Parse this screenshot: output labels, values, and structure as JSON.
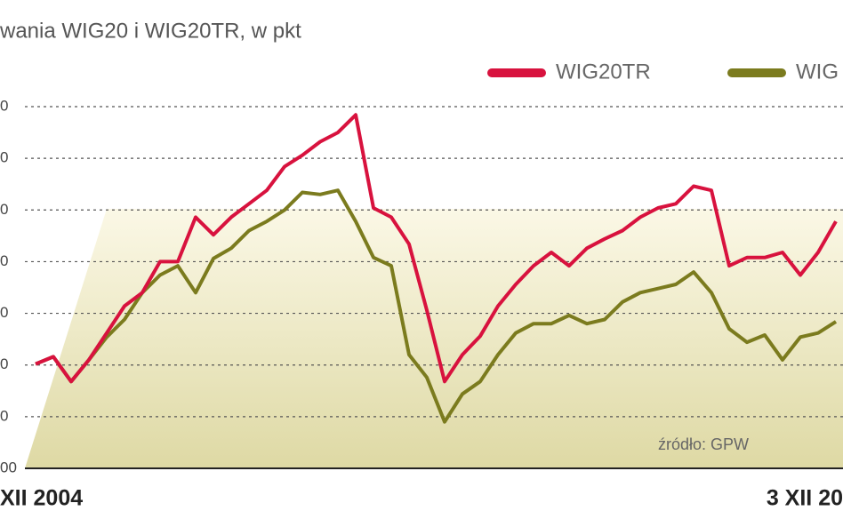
{
  "chart_data": {
    "type": "line",
    "title": "wania WIG20 i WIG20TR, w pkt",
    "source": "źródło: GPW",
    "categories": [
      "XII 2004",
      null,
      null,
      null,
      null,
      null,
      null,
      null,
      null,
      null,
      null,
      null,
      null,
      null,
      null,
      null,
      null,
      null,
      null,
      null,
      null,
      null,
      null,
      null,
      null,
      null,
      null,
      null,
      null,
      null,
      null,
      null,
      null,
      null,
      null,
      null,
      null,
      null,
      null,
      null,
      null,
      null,
      null,
      null,
      null,
      "3 XII 20"
    ],
    "series": [
      {
        "name": "WIG20TR",
        "color": "#d8123e",
        "values": [
          2010,
          2080,
          1840,
          2050,
          2310,
          2570,
          2700,
          3000,
          3000,
          3430,
          3260,
          3430,
          3560,
          3690,
          3920,
          4030,
          4160,
          4250,
          4420,
          3520,
          3430,
          3170,
          2530,
          1840,
          2100,
          2280,
          2570,
          2780,
          2960,
          3090,
          2960,
          3130,
          3220,
          3300,
          3430,
          3520,
          3560,
          3730,
          3690,
          2960,
          3040,
          3040,
          3090,
          2870,
          3090,
          3390
        ]
      },
      {
        "name": "WIG",
        "color": "#7b7b1e",
        "values": [
          2010,
          2080,
          1840,
          2050,
          2270,
          2440,
          2700,
          2870,
          2960,
          2700,
          3030,
          3130,
          3300,
          3390,
          3500,
          3670,
          3650,
          3690,
          3390,
          3040,
          2960,
          2100,
          1880,
          1450,
          1720,
          1840,
          2100,
          2310,
          2400,
          2400,
          2480,
          2400,
          2440,
          2610,
          2700,
          2740,
          2780,
          2900,
          2700,
          2350,
          2220,
          2290,
          2050,
          2270,
          2310,
          2420
        ]
      }
    ],
    "ylim": [
      1000,
      4500
    ],
    "yticks": [
      {
        "value": 1000,
        "label": "00"
      },
      {
        "value": 1500,
        "label": "0"
      },
      {
        "value": 2000,
        "label": "0"
      },
      {
        "value": 2500,
        "label": "0"
      },
      {
        "value": 3000,
        "label": "0"
      },
      {
        "value": 3500,
        "label": "0"
      },
      {
        "value": 4000,
        "label": "0"
      },
      {
        "value": 4500,
        "label": "0"
      }
    ],
    "grid": true
  }
}
